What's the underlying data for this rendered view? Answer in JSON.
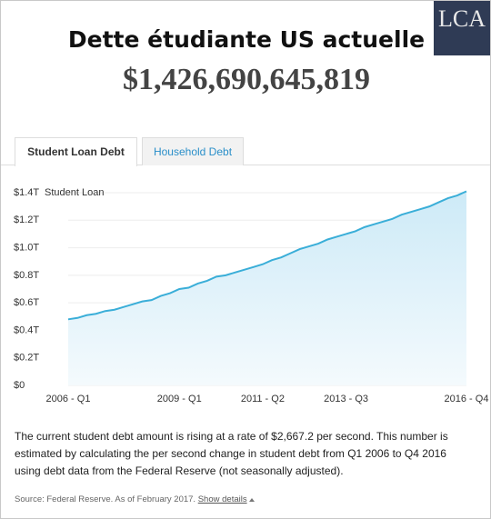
{
  "header": {
    "title": "Dette étudiante US actuelle",
    "amount": "$1,426,690,645,819",
    "logo": "LCA"
  },
  "tabs": [
    "Student Loan Debt",
    "Household Debt"
  ],
  "chart_data": {
    "type": "area",
    "categories": [
      "2006 - Q1",
      null,
      null,
      null,
      null,
      null,
      null,
      null,
      null,
      null,
      null,
      null,
      "2009 - Q1",
      null,
      null,
      null,
      null,
      null,
      null,
      null,
      null,
      "2011 - Q2",
      null,
      null,
      null,
      null,
      null,
      null,
      null,
      null,
      "2013 - Q3",
      null,
      null,
      null,
      null,
      null,
      null,
      null,
      null,
      null,
      null,
      null,
      null,
      "2016 - Q4"
    ],
    "series": [
      {
        "name": "Student Loan",
        "color": "#3aaed8",
        "values": [
          0.48,
          0.49,
          0.51,
          0.52,
          0.54,
          0.55,
          0.57,
          0.59,
          0.61,
          0.62,
          0.65,
          0.67,
          0.7,
          0.71,
          0.74,
          0.76,
          0.79,
          0.8,
          0.82,
          0.84,
          0.86,
          0.88,
          0.91,
          0.93,
          0.96,
          0.99,
          1.01,
          1.03,
          1.06,
          1.08,
          1.1,
          1.12,
          1.15,
          1.17,
          1.19,
          1.21,
          1.24,
          1.26,
          1.28,
          1.3,
          1.33,
          1.36,
          1.38,
          1.41
        ]
      }
    ],
    "ylim": [
      0,
      1.4
    ],
    "yticks": [
      {
        "value": 0,
        "label": "$0"
      },
      {
        "value": 0.2,
        "label": "$0.2T"
      },
      {
        "value": 0.4,
        "label": "$0.4T"
      },
      {
        "value": 0.6,
        "label": "$0.6T"
      },
      {
        "value": 0.8,
        "label": "$0.8T"
      },
      {
        "value": 1.0,
        "label": "$1.0T"
      },
      {
        "value": 1.2,
        "label": "$1.2T"
      },
      {
        "value": 1.4,
        "label": "$1.4T"
      }
    ],
    "grid": true
  },
  "description": "The current student debt amount is rising at a rate of $2,667.2 per second. This number is estimated by calculating the per second change in student debt from Q1 2006 to Q4 2016 using debt data from the Federal Reserve (not seasonally adjusted).",
  "source": "Source: Federal Reserve. As of February 2017.",
  "details_link": "Show details"
}
